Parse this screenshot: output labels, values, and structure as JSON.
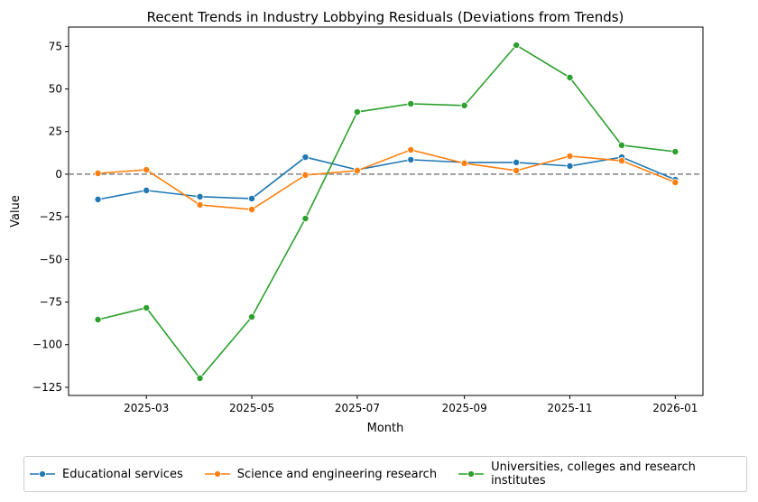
{
  "chart_data": {
    "type": "line",
    "title": "Recent Trends in Industry Lobbying Residuals (Deviations from Trends)",
    "xlabel": "Month",
    "ylabel": "Value",
    "x": [
      "2025-02-01",
      "2025-03-01",
      "2025-04-01",
      "2025-05-01",
      "2025-06-01",
      "2025-07-01",
      "2025-08-01",
      "2025-09-01",
      "2025-10-01",
      "2025-11-01",
      "2025-12-01",
      "2026-01-01"
    ],
    "xticks": [
      "2025-03",
      "2025-05",
      "2025-07",
      "2025-09",
      "2025-11",
      "2026-01"
    ],
    "yticks": [
      75,
      50,
      25,
      0,
      -25,
      -50,
      -75,
      -100,
      -125
    ],
    "xlim": [
      "2025-01-15",
      "2026-01-17"
    ],
    "ylim": [
      -129.8,
      86.3
    ],
    "grid": false,
    "reference_line": {
      "y": 0,
      "style": "dashed",
      "color": "#808080"
    },
    "legend_position": "bottom-outside",
    "series": [
      {
        "name": "Educational services",
        "color": "#1f77b4",
        "values": [
          -14.8,
          -9.5,
          -13.2,
          -14.3,
          10.0,
          2.6,
          8.5,
          6.9,
          6.9,
          4.8,
          10.0,
          -3.2
        ]
      },
      {
        "name": "Science and engineering research",
        "color": "#ff7f0e",
        "values": [
          0.5,
          2.6,
          -18.0,
          -20.7,
          -0.5,
          2.1,
          14.3,
          6.4,
          2.1,
          10.6,
          7.9,
          -4.8
        ]
      },
      {
        "name": "Universities, colleges and research institutes",
        "color": "#2ca02c",
        "values": [
          -85.3,
          -78.4,
          -119.7,
          -83.7,
          -26.0,
          36.5,
          41.3,
          40.3,
          75.7,
          56.7,
          17.0,
          13.2
        ]
      }
    ]
  },
  "legend": {
    "items": [
      "Educational services",
      "Science and engineering research",
      "Universities, colleges and research",
      "institutes"
    ]
  }
}
